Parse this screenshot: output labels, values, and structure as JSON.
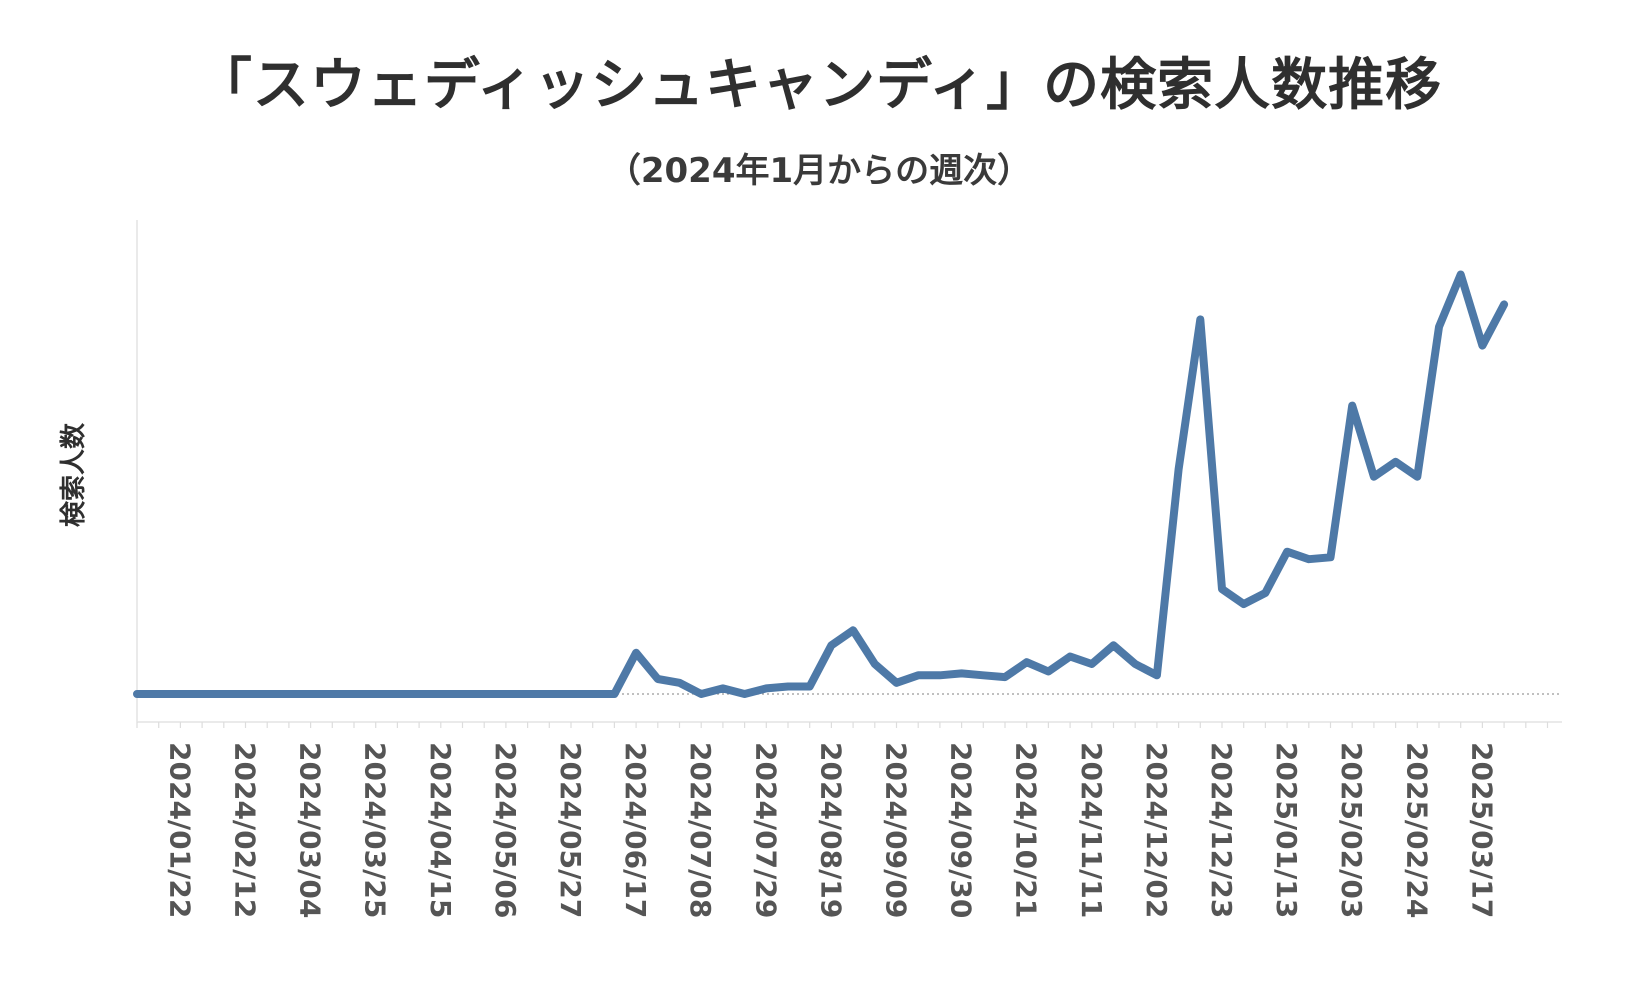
{
  "chart_data": {
    "type": "line",
    "title": "「スウェディッシュキャンディ」の検索人数推移",
    "subtitle": "（2024年1月からの週次）",
    "xlabel": "",
    "ylabel": "検索人数",
    "tick_labels": [
      "2024/01/22",
      "2024/02/12",
      "2024/03/04",
      "2024/03/25",
      "2024/04/15",
      "2024/05/06",
      "2024/05/27",
      "2024/06/17",
      "2024/07/08",
      "2024/07/29",
      "2024/08/19",
      "2024/09/09",
      "2024/09/30",
      "2024/10/21",
      "2024/11/11",
      "2024/12/02",
      "2024/12/23",
      "2025/01/13",
      "2025/02/03",
      "2025/02/24",
      "2025/03/17"
    ],
    "grid": false,
    "legend": "none",
    "series": [
      {
        "color": "#4e79a7",
        "values": [
          0,
          0,
          0,
          0,
          0,
          0,
          0,
          0,
          0,
          0,
          0,
          0,
          0,
          0,
          0,
          0,
          0,
          0,
          0,
          0,
          0,
          0,
          0,
          11,
          4,
          3,
          0,
          1.5,
          0,
          1.5,
          2,
          2,
          13,
          17,
          8,
          3,
          5,
          5,
          5.5,
          5,
          4.5,
          8.5,
          6,
          10,
          8,
          13,
          8,
          5,
          60,
          100,
          28,
          24,
          27,
          38,
          36,
          36.5,
          77,
          58,
          62,
          58,
          98,
          112,
          93,
          104
        ]
      }
    ],
    "ylim": [
      -4,
      118
    ]
  }
}
